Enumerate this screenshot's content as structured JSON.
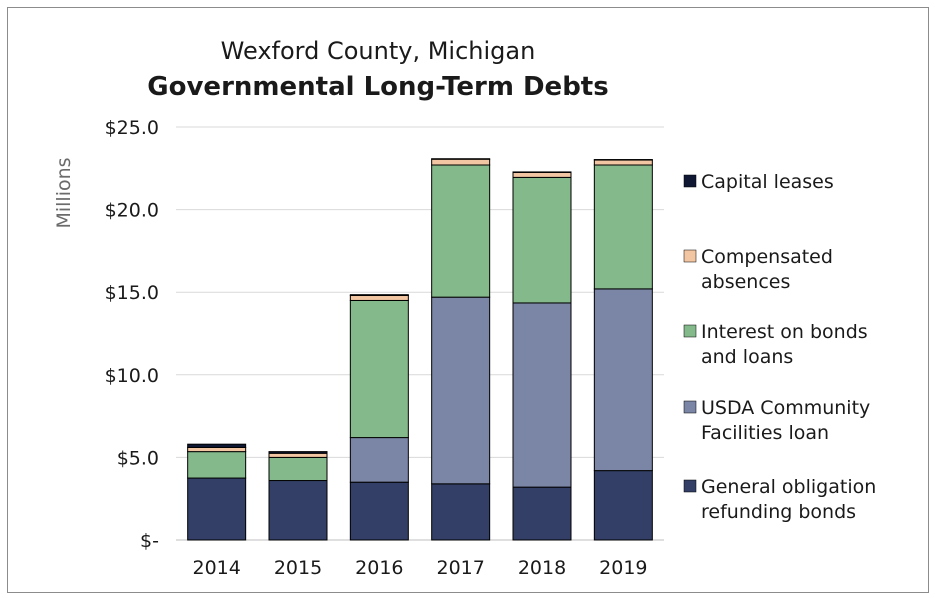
{
  "chart_data": {
    "type": "bar",
    "stacked": true,
    "subtitle": "Wexford County, Michigan",
    "title": "Governmental Long-Term Debts",
    "ylabel": "Millions",
    "categories": [
      "2014",
      "2015",
      "2016",
      "2017",
      "2018",
      "2019"
    ],
    "ylim": [
      0,
      25
    ],
    "yticks": [
      {
        "value": 0,
        "label": "$-"
      },
      {
        "value": 5,
        "label": "$5.0"
      },
      {
        "value": 10,
        "label": "$10.0"
      },
      {
        "value": 15,
        "label": "$15.0"
      },
      {
        "value": 20,
        "label": "$20.0"
      },
      {
        "value": 25,
        "label": "$25.0"
      }
    ],
    "grid": true,
    "legend_position": "right",
    "series": [
      {
        "name": "General obligation refunding bonds",
        "legend_lines": [
          "General obligation",
          "refunding bonds"
        ],
        "color": "#333f66",
        "values": [
          3.75,
          3.6,
          3.5,
          3.4,
          3.2,
          4.2
        ]
      },
      {
        "name": "USDA Community Facilities loan",
        "legend_lines": [
          "USDA Community",
          "Facilities loan"
        ],
        "color": "#7b86a6",
        "values": [
          0,
          0,
          2.7,
          11.3,
          11.15,
          11.0
        ]
      },
      {
        "name": "Interest on bonds and loans",
        "legend_lines": [
          "Interest on bonds",
          "and loans"
        ],
        "color": "#84b98b",
        "values": [
          1.6,
          1.4,
          8.3,
          8.0,
          7.6,
          7.5
        ]
      },
      {
        "name": "Compensated absences",
        "legend_lines": [
          "Compensated",
          "absences"
        ],
        "color": "#f2c6a3",
        "values": [
          0.25,
          0.25,
          0.3,
          0.35,
          0.3,
          0.3
        ]
      },
      {
        "name": "Capital leases",
        "legend_lines": [
          "Capital leases"
        ],
        "color": "#0f1733",
        "values": [
          0.2,
          0.1,
          0.05,
          0.03,
          0.03,
          0.03
        ]
      }
    ]
  }
}
